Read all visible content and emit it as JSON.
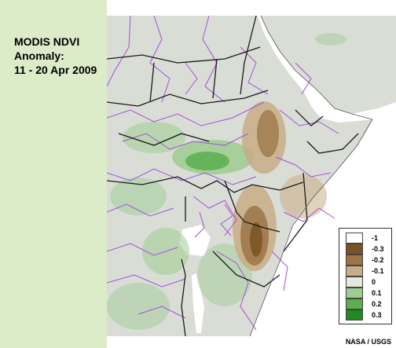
{
  "title": {
    "line1": "MODIS NDVI",
    "line2": "Anomaly:",
    "line3": "11 - 20 Apr 2009"
  },
  "legend": {
    "entries": [
      {
        "label": "-1",
        "color": "#ffffff"
      },
      {
        "label": "-0.3",
        "color": "#7a5224"
      },
      {
        "label": "-0.2",
        "color": "#9c7446"
      },
      {
        "label": "-0.1",
        "color": "#c8ad86"
      },
      {
        "label": "0",
        "color": "#e8e6e0"
      },
      {
        "label": "0.1",
        "color": "#9ccd91"
      },
      {
        "label": "0.2",
        "color": "#5cae4e"
      },
      {
        "label": "0.3",
        "color": "#1f8a1f"
      }
    ]
  },
  "credit": "NASA / USGS",
  "colors": {
    "panel": "#dcebc8",
    "land": "#d9ddd6",
    "water": "#ffffff",
    "country_border": "#1a1a1a",
    "admin_border": "#a64fd9"
  }
}
